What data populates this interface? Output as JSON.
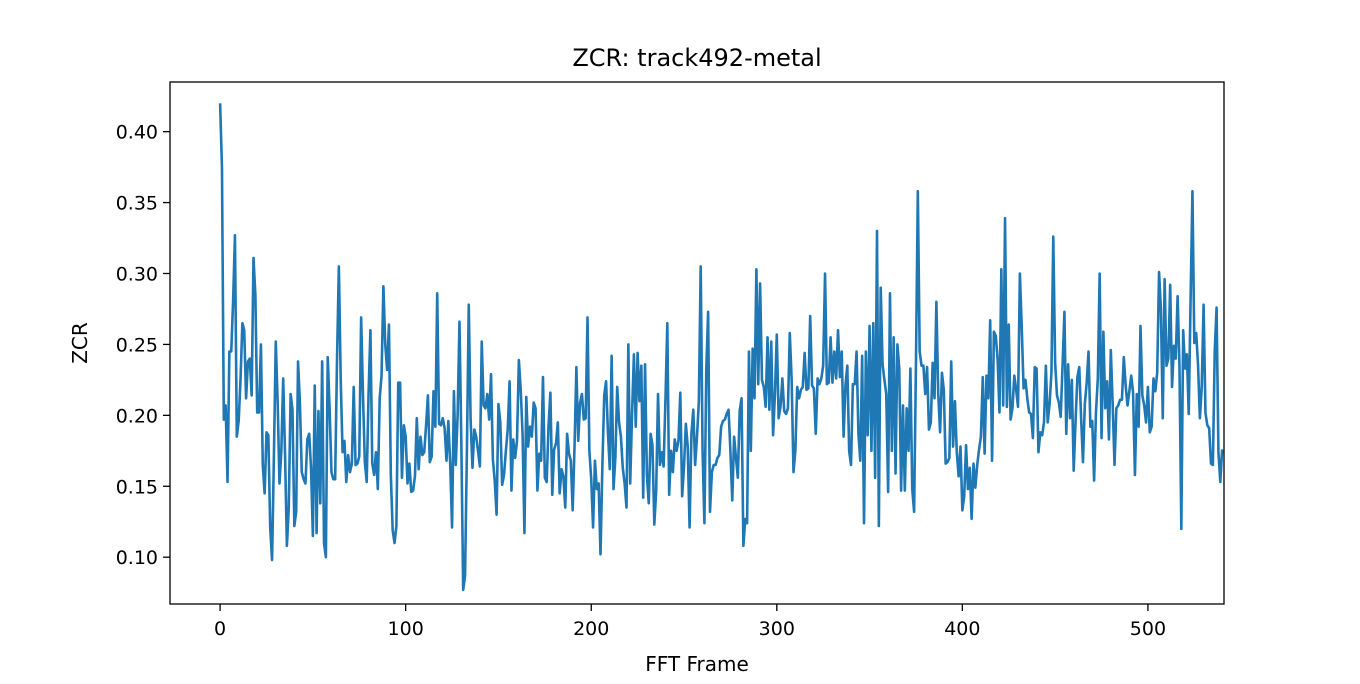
{
  "chart_data": {
    "type": "line",
    "title": "ZCR: track492-metal",
    "xlabel": "FFT Frame",
    "ylabel": "ZCR",
    "xlim": [
      -27,
      541
    ],
    "ylim": [
      0.067,
      0.435
    ],
    "xticks": [
      0,
      100,
      200,
      300,
      400,
      500
    ],
    "xtick_labels": [
      "0",
      "100",
      "200",
      "300",
      "400",
      "500"
    ],
    "yticks": [
      0.1,
      0.15,
      0.2,
      0.25,
      0.3,
      0.35,
      0.4
    ],
    "ytick_labels": [
      "0.10",
      "0.15",
      "0.20",
      "0.25",
      "0.30",
      "0.35",
      "0.40"
    ],
    "grid": false,
    "legend": false,
    "color": "#1f77b4",
    "series": [
      {
        "x_start": 0,
        "x_step": 1,
        "values": [
          0.42,
          0.375,
          0.197,
          0.207,
          0.153,
          0.245,
          0.245,
          0.28,
          0.327,
          0.185,
          0.196,
          0.225,
          0.265,
          0.26,
          0.212,
          0.238,
          0.24,
          0.214,
          0.311,
          0.285,
          0.202,
          0.202,
          0.25,
          0.165,
          0.145,
          0.188,
          0.186,
          0.121,
          0.098,
          0.172,
          0.252,
          0.21,
          0.152,
          0.175,
          0.226,
          0.172,
          0.108,
          0.135,
          0.215,
          0.204,
          0.122,
          0.132,
          0.238,
          0.209,
          0.16,
          0.155,
          0.152,
          0.183,
          0.187,
          0.163,
          0.115,
          0.221,
          0.117,
          0.203,
          0.138,
          0.238,
          0.11,
          0.1,
          0.241,
          0.205,
          0.16,
          0.155,
          0.155,
          0.239,
          0.305,
          0.225,
          0.174,
          0.182,
          0.153,
          0.172,
          0.16,
          0.166,
          0.22,
          0.165,
          0.166,
          0.171,
          0.269,
          0.214,
          0.167,
          0.153,
          0.215,
          0.26,
          0.166,
          0.158,
          0.174,
          0.148,
          0.212,
          0.228,
          0.291,
          0.25,
          0.232,
          0.264,
          0.158,
          0.119,
          0.11,
          0.122,
          0.223,
          0.223,
          0.156,
          0.193,
          0.185,
          0.152,
          0.166,
          0.146,
          0.147,
          0.157,
          0.198,
          0.162,
          0.185,
          0.172,
          0.174,
          0.193,
          0.214,
          0.167,
          0.171,
          0.217,
          0.192,
          0.286,
          0.194,
          0.193,
          0.198,
          0.191,
          0.168,
          0.196,
          0.166,
          0.121,
          0.217,
          0.165,
          0.2,
          0.266,
          0.181,
          0.077,
          0.087,
          0.175,
          0.278,
          0.197,
          0.163,
          0.19,
          0.185,
          0.175,
          0.164,
          0.252,
          0.207,
          0.205,
          0.215,
          0.197,
          0.229,
          0.169,
          0.154,
          0.13,
          0.208,
          0.195,
          0.151,
          0.158,
          0.175,
          0.19,
          0.224,
          0.147,
          0.183,
          0.17,
          0.182,
          0.239,
          0.218,
          0.187,
          0.117,
          0.213,
          0.178,
          0.192,
          0.185,
          0.209,
          0.205,
          0.147,
          0.173,
          0.168,
          0.227,
          0.156,
          0.153,
          0.193,
          0.216,
          0.144,
          0.176,
          0.18,
          0.195,
          0.145,
          0.162,
          0.157,
          0.135,
          0.187,
          0.173,
          0.168,
          0.133,
          0.178,
          0.234,
          0.182,
          0.209,
          0.215,
          0.197,
          0.198,
          0.269,
          0.175,
          0.155,
          0.121,
          0.168,
          0.148,
          0.152,
          0.102,
          0.164,
          0.214,
          0.224,
          0.188,
          0.162,
          0.242,
          0.148,
          0.17,
          0.22,
          0.195,
          0.185,
          0.163,
          0.152,
          0.135,
          0.25,
          0.152,
          0.201,
          0.243,
          0.192,
          0.244,
          0.21,
          0.235,
          0.142,
          0.236,
          0.158,
          0.138,
          0.187,
          0.179,
          0.123,
          0.147,
          0.215,
          0.165,
          0.174,
          0.164,
          0.211,
          0.265,
          0.144,
          0.175,
          0.16,
          0.183,
          0.175,
          0.182,
          0.216,
          0.143,
          0.164,
          0.194,
          0.178,
          0.121,
          0.187,
          0.204,
          0.165,
          0.185,
          0.21,
          0.305,
          0.175,
          0.124,
          0.232,
          0.273,
          0.132,
          0.16,
          0.165,
          0.165,
          0.17,
          0.172,
          0.192,
          0.196,
          0.197,
          0.201,
          0.204,
          0.175,
          0.14,
          0.185,
          0.17,
          0.156,
          0.203,
          0.212,
          0.108,
          0.127,
          0.124,
          0.245,
          0.175,
          0.247,
          0.212,
          0.303,
          0.222,
          0.293,
          0.225,
          0.22,
          0.206,
          0.255,
          0.204,
          0.252,
          0.186,
          0.215,
          0.257,
          0.198,
          0.206,
          0.226,
          0.203,
          0.201,
          0.205,
          0.258,
          0.225,
          0.16,
          0.175,
          0.22,
          0.212,
          0.218,
          0.22,
          0.244,
          0.218,
          0.219,
          0.27,
          0.221,
          0.219,
          0.187,
          0.226,
          0.222,
          0.226,
          0.235,
          0.3,
          0.222,
          0.223,
          0.255,
          0.223,
          0.245,
          0.226,
          0.26,
          0.227,
          0.245,
          0.185,
          0.221,
          0.235,
          0.175,
          0.165,
          0.222,
          0.222,
          0.245,
          0.187,
          0.168,
          0.242,
          0.124,
          0.245,
          0.186,
          0.263,
          0.175,
          0.265,
          0.156,
          0.33,
          0.122,
          0.29,
          0.236,
          0.225,
          0.215,
          0.146,
          0.286,
          0.175,
          0.255,
          0.159,
          0.25,
          0.233,
          0.147,
          0.207,
          0.147,
          0.205,
          0.175,
          0.233,
          0.148,
          0.132,
          0.237,
          0.358,
          0.245,
          0.235,
          0.235,
          0.215,
          0.234,
          0.19,
          0.195,
          0.237,
          0.212,
          0.28,
          0.215,
          0.188,
          0.23,
          0.218,
          0.166,
          0.167,
          0.17,
          0.238,
          0.178,
          0.21,
          0.174,
          0.157,
          0.178,
          0.133,
          0.143,
          0.179,
          0.148,
          0.163,
          0.127,
          0.166,
          0.149,
          0.165,
          0.176,
          0.185,
          0.227,
          0.173,
          0.228,
          0.212,
          0.267,
          0.168,
          0.259,
          0.256,
          0.24,
          0.202,
          0.303,
          0.207,
          0.339,
          0.206,
          0.264,
          0.197,
          0.205,
          0.228,
          0.218,
          0.206,
          0.3,
          0.262,
          0.219,
          0.225,
          0.212,
          0.202,
          0.201,
          0.184,
          0.234,
          0.233,
          0.174,
          0.188,
          0.186,
          0.195,
          0.235,
          0.195,
          0.208,
          0.23,
          0.326,
          0.237,
          0.214,
          0.209,
          0.199,
          0.235,
          0.273,
          0.187,
          0.236,
          0.198,
          0.225,
          0.161,
          0.196,
          0.227,
          0.234,
          0.198,
          0.167,
          0.208,
          0.223,
          0.245,
          0.192,
          0.196,
          0.154,
          0.202,
          0.226,
          0.3,
          0.184,
          0.259,
          0.205,
          0.224,
          0.183,
          0.246,
          0.208,
          0.165,
          0.205,
          0.207,
          0.211,
          0.211,
          0.241,
          0.221,
          0.207,
          0.217,
          0.228,
          0.216,
          0.158,
          0.215,
          0.192,
          0.263,
          0.214,
          0.207,
          0.195,
          0.22,
          0.188,
          0.192,
          0.226,
          0.217,
          0.23,
          0.301,
          0.275,
          0.198,
          0.296,
          0.235,
          0.24,
          0.292,
          0.22,
          0.249,
          0.24,
          0.284,
          0.235,
          0.12,
          0.26,
          0.233,
          0.243,
          0.201,
          0.282,
          0.358,
          0.251,
          0.258,
          0.236,
          0.198,
          0.22,
          0.278,
          0.202,
          0.193,
          0.191,
          0.166,
          0.165,
          0.245,
          0.276,
          0.174,
          0.153,
          0.176
        ]
      }
    ]
  }
}
